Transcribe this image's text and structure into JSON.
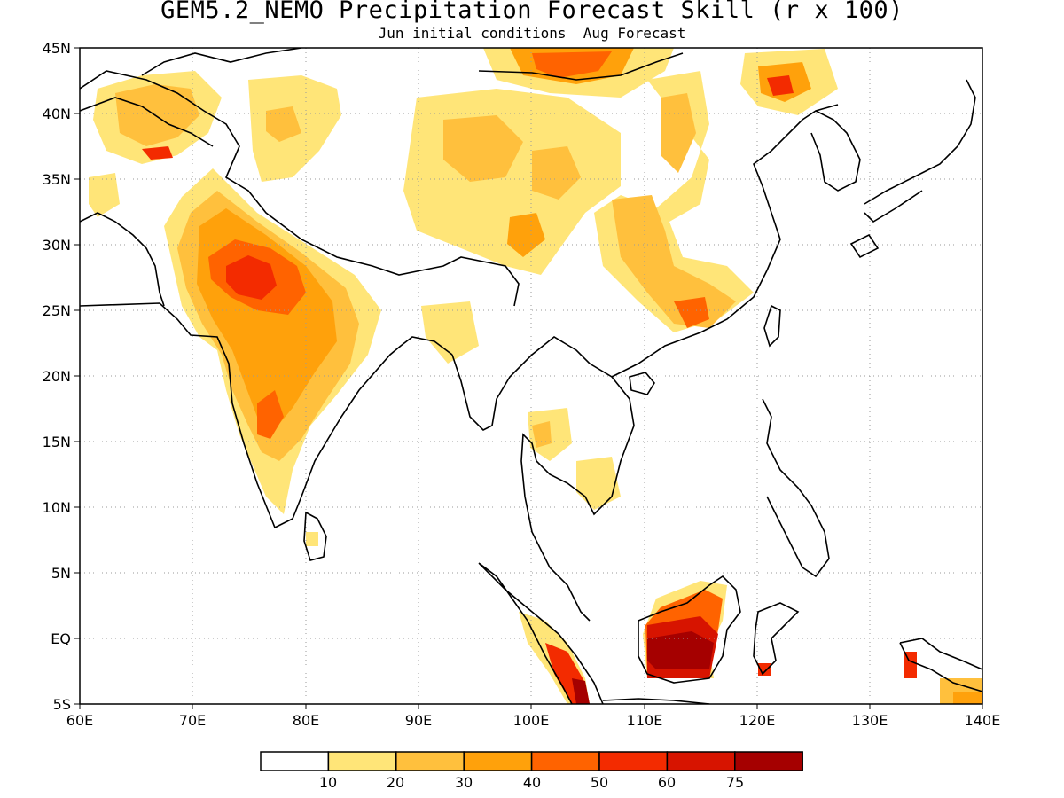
{
  "title": "GEM5.2_NEMO Precipitation Forecast Skill (r x 100)",
  "subtitle": "Jun initial conditions  Aug Forecast",
  "axes": {
    "lon_ticks": [
      "60E",
      "70E",
      "80E",
      "90E",
      "100E",
      "110E",
      "120E",
      "130E",
      "140E"
    ],
    "lat_ticks": [
      "45N",
      "40N",
      "35N",
      "30N",
      "25N",
      "20N",
      "15N",
      "10N",
      "5N",
      "EQ",
      "5S"
    ],
    "lon_range": [
      60,
      140
    ],
    "lat_range": [
      -5,
      45
    ],
    "grid": "dotted"
  },
  "colorbar": {
    "labels": [
      "10",
      "20",
      "30",
      "40",
      "50",
      "60",
      "75"
    ],
    "colors": [
      "#ffffff",
      "#ffe578",
      "#ffc03d",
      "#ffa10b",
      "#ff6300",
      "#f32b00",
      "#d71400",
      "#a50000"
    ]
  },
  "colors": {
    "land_outline": "#000000",
    "grid": "#9a9a9a"
  }
}
